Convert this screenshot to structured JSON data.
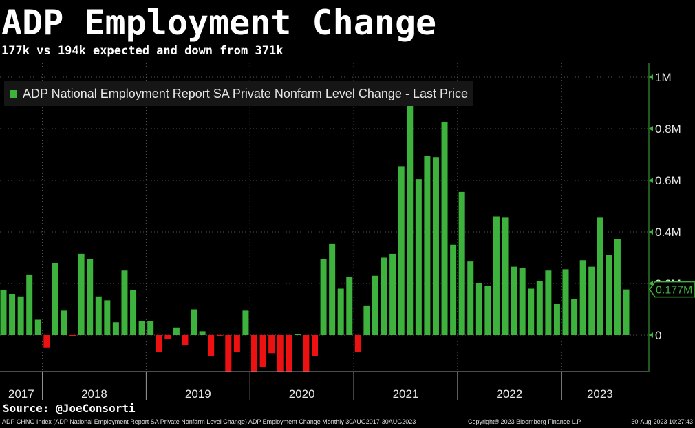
{
  "header": {
    "title": "ADP Employment Change",
    "subtitle": "177k vs 194k expected and down from 371k"
  },
  "legend": {
    "label": "ADP National Employment Report SA Private Nonfarm Level Change - Last Price"
  },
  "source": "Source: @JoeConsorti",
  "footer": {
    "left": "ADP CHNG Index (ADP National Employment Report SA Private Nonfarm Level Change) ADP Employment Change Monthly 30AUG2017-30AUG2023",
    "center": "Copyright® 2023 Bloomberg Finance L.P.",
    "right": "30-Aug-2023 10:27:43"
  },
  "colors": {
    "positive": "#3db23d",
    "negative": "#ee1111",
    "axis": "#3db23d",
    "grid": "#555555",
    "last_price_box": "#3db23d"
  },
  "chart_data": {
    "type": "bar",
    "unit": "M",
    "ylim": [
      -0.14,
      1.02
    ],
    "yticks": [
      0,
      0.2,
      0.4,
      0.6,
      0.8,
      1.0
    ],
    "ytick_labels": [
      "0",
      "0.2M",
      "0.4M",
      "0.6M",
      "0.8M",
      "1M"
    ],
    "grid": true,
    "legend_position": "top-left",
    "year_labels": [
      "2017",
      "2018",
      "2019",
      "2020",
      "2021",
      "2022",
      "2023"
    ],
    "last_value_label": "0.177M",
    "categories": [
      "2017-08",
      "2017-09",
      "2017-10",
      "2017-11",
      "2017-12",
      "2018-01",
      "2018-02",
      "2018-03",
      "2018-04",
      "2018-05",
      "2018-06",
      "2018-07",
      "2018-08",
      "2018-09",
      "2018-10",
      "2018-11",
      "2018-12",
      "2019-01",
      "2019-02",
      "2019-03",
      "2019-04",
      "2019-05",
      "2019-06",
      "2019-07",
      "2019-08",
      "2019-09",
      "2019-10",
      "2019-11",
      "2019-12",
      "2020-01",
      "2020-02",
      "2020-03",
      "2020-04",
      "2020-05",
      "2020-06",
      "2020-07",
      "2020-08",
      "2020-09",
      "2020-10",
      "2020-11",
      "2020-12",
      "2021-01",
      "2021-02",
      "2021-03",
      "2021-04",
      "2021-05",
      "2021-06",
      "2021-07",
      "2021-08",
      "2021-09",
      "2021-10",
      "2021-11",
      "2021-12",
      "2022-01",
      "2022-02",
      "2022-03",
      "2022-04",
      "2022-05",
      "2022-06",
      "2022-07",
      "2022-08",
      "2022-09",
      "2022-10",
      "2022-11",
      "2022-12",
      "2023-01",
      "2023-02",
      "2023-03",
      "2023-04",
      "2023-05",
      "2023-06",
      "2023-07",
      "2023-08"
    ],
    "values": [
      0.175,
      0.16,
      0.15,
      0.235,
      0.06,
      -0.05,
      0.28,
      0.095,
      -0.005,
      0.315,
      0.295,
      0.15,
      0.135,
      0.05,
      0.25,
      0.175,
      0.055,
      0.055,
      -0.065,
      -0.015,
      0.03,
      -0.04,
      0.1,
      0.015,
      -0.08,
      -0.005,
      -0.15,
      -0.065,
      0.095,
      -0.14,
      -0.125,
      -0.07,
      -0.14,
      -0.15,
      0.005,
      -0.15,
      -0.08,
      0.295,
      0.355,
      0.18,
      0.225,
      -0.065,
      0.115,
      0.23,
      0.3,
      0.315,
      0.655,
      0.93,
      0.605,
      0.695,
      0.69,
      0.825,
      0.35,
      0.555,
      0.285,
      0.2,
      0.19,
      0.46,
      0.455,
      0.265,
      0.26,
      0.18,
      0.21,
      0.25,
      0.12,
      0.255,
      0.14,
      0.29,
      0.265,
      0.455,
      0.31,
      0.371,
      0.177
    ]
  }
}
